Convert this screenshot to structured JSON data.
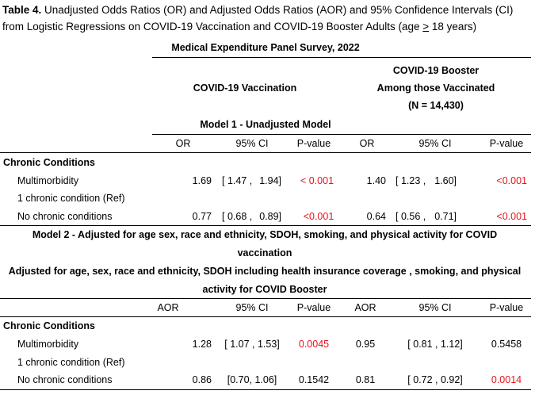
{
  "caption": {
    "label": "Table 4.",
    "line1_rest": " Unadjusted Odds Ratios (OR) and Adjusted Odds Ratios (AOR) and 95% Confidence Intervals (CI)",
    "line2_pre": "from Logistic Regressions on COVID-19 Vaccination and COVID-19 Booster Adults (",
    "line2_age": "age ",
    "line2_ge": ">",
    "line2_post": " 18 years)"
  },
  "survey_title": "Medical Expenditure Panel Survey, 2022",
  "vaccination_header": "COVID-19 Vaccination",
  "booster_header": {
    "line1": "COVID-19 Booster",
    "line2": "Among those Vaccinated",
    "line3": "(N = 14,430)"
  },
  "model1": {
    "title": "Model 1 - Unadjusted Model",
    "columns": [
      "OR",
      "95% CI",
      "P-value",
      "OR",
      "95% CI",
      "P-value"
    ],
    "section": "Chronic Conditions",
    "rows": [
      {
        "label": "Multimorbidity",
        "or1": "1.69",
        "ci1_lo": "[ 1.47 ,",
        "ci1_hi": "1.94]",
        "p1": "< 0.001",
        "or2": "1.40",
        "ci2_lo": "[ 1.23 ,",
        "ci2_hi": "1.60]",
        "p2": "<0.001"
      },
      {
        "label": "1 chronic condition (Ref)"
      },
      {
        "label": "No chronic conditions",
        "or1": "0.77",
        "ci1_lo": "[ 0.68 ,",
        "ci1_hi": "0.89]",
        "p1": "<0.001",
        "or2": "0.64",
        "ci2_lo": "[ 0.56 ,",
        "ci2_hi": "0.71]",
        "p2": "<0.001"
      }
    ]
  },
  "model2": {
    "title_line1": "Model 2 - Adjusted for age sex, race and ethnicity, SDOH, smoking, and physical activity  for COVID",
    "title_line2": "vaccination",
    "subtitle_line1": "Adjusted for age, sex, race and ethnicity, SDOH including health insurance coverage , smoking, and physical",
    "subtitle_line2": "activity  for COVID Booster",
    "columns": [
      "AOR",
      "95% CI",
      "P-value",
      "AOR",
      "95% CI",
      "P-value"
    ],
    "section": "Chronic Conditions",
    "rows": [
      {
        "label": "Multimorbidity",
        "or1": "1.28",
        "ci1": "[ 1.07 ,  1.53]",
        "p1": "0.0045",
        "or2": "0.95",
        "ci2": "[ 0.81 ,  1.12]",
        "p2": "0.5458"
      },
      {
        "label": "1 chronic condition (Ref)"
      },
      {
        "label": "No chronic conditions",
        "or1": "0.86",
        "ci1": "[0.70, 1.06]",
        "p1": "0.1542",
        "or2": "0.81",
        "ci2": "[ 0.72 ,  0.92]",
        "p2": "0.0014"
      }
    ]
  },
  "colors": {
    "significant": "#e8141c",
    "text": "#000000"
  }
}
